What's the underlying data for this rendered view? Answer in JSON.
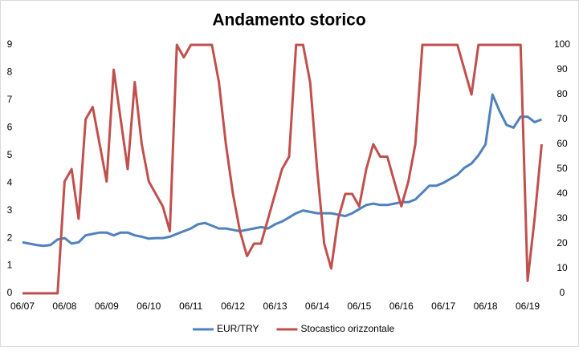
{
  "chart_data": {
    "type": "line",
    "title": "Andamento storico",
    "categories": [
      "06/07",
      null,
      null,
      null,
      null,
      null,
      "06/08",
      null,
      null,
      null,
      null,
      null,
      "06/09",
      null,
      null,
      null,
      null,
      null,
      "06/10",
      null,
      null,
      null,
      null,
      null,
      "06/11",
      null,
      null,
      null,
      null,
      null,
      "06/12",
      null,
      null,
      null,
      null,
      null,
      "06/13",
      null,
      null,
      null,
      null,
      null,
      "06/14",
      null,
      null,
      null,
      null,
      null,
      "06/15",
      null,
      null,
      null,
      null,
      null,
      "06/16",
      null,
      null,
      null,
      null,
      null,
      "06/17",
      null,
      null,
      null,
      null,
      null,
      "06/18",
      null,
      null,
      null,
      null,
      null,
      "06/19",
      null,
      null
    ],
    "series": [
      {
        "name": "EUR/TRY",
        "color": "#4f81bd",
        "axis": "y",
        "values": [
          1.85,
          1.8,
          1.75,
          1.72,
          1.75,
          1.95,
          2.0,
          1.8,
          1.85,
          2.1,
          2.15,
          2.2,
          2.2,
          2.1,
          2.2,
          2.2,
          2.1,
          2.05,
          1.98,
          2.0,
          2.0,
          2.05,
          2.15,
          2.25,
          2.35,
          2.5,
          2.55,
          2.45,
          2.35,
          2.35,
          2.3,
          2.25,
          2.3,
          2.35,
          2.4,
          2.35,
          2.5,
          2.6,
          2.75,
          2.9,
          3.0,
          2.95,
          2.9,
          2.9,
          2.9,
          2.85,
          2.8,
          2.9,
          3.05,
          3.2,
          3.25,
          3.2,
          3.2,
          3.25,
          3.3,
          3.3,
          3.4,
          3.65,
          3.9,
          3.9,
          4.0,
          4.15,
          4.3,
          4.55,
          4.7,
          5.0,
          5.4,
          7.2,
          6.6,
          6.1,
          6.0,
          6.4,
          6.4,
          6.2,
          6.3
        ]
      },
      {
        "name": "Stocastico orizzontale",
        "color": "#c0504d",
        "axis": "y2",
        "values": [
          0,
          0,
          0,
          0,
          0,
          0,
          45,
          50,
          30,
          70,
          75,
          60,
          45,
          90,
          70,
          50,
          85,
          60,
          45,
          40,
          35,
          25,
          100,
          95,
          100,
          100,
          100,
          100,
          85,
          60,
          40,
          25,
          15,
          20,
          20,
          30,
          40,
          50,
          55,
          100,
          100,
          85,
          50,
          20,
          10,
          30,
          40,
          40,
          35,
          50,
          60,
          55,
          55,
          45,
          35,
          45,
          60,
          100,
          100,
          100,
          100,
          100,
          100,
          90,
          80,
          100,
          100,
          100,
          100,
          100,
          100,
          100,
          5,
          30,
          60
        ]
      }
    ],
    "ylim": [
      0,
      9
    ],
    "yticks": [
      0,
      1,
      2,
      3,
      4,
      5,
      6,
      7,
      8,
      9
    ],
    "y2lim": [
      0,
      100
    ],
    "y2ticks": [
      0,
      10,
      20,
      30,
      40,
      50,
      60,
      70,
      80,
      90,
      100
    ],
    "grid": false,
    "legend": "bottom"
  }
}
